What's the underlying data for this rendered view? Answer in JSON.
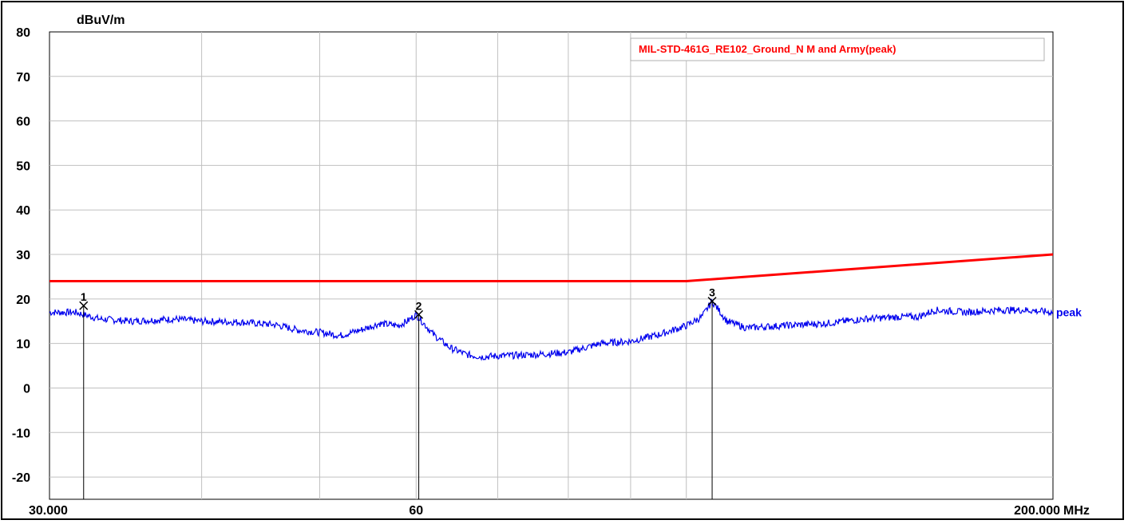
{
  "chart_data": {
    "type": "line",
    "ylabel": "dBuV/m",
    "xunit": "MHz",
    "xscale": "log",
    "xlim": [
      30,
      200
    ],
    "ylim": [
      -25,
      80
    ],
    "x_tick_labels": [
      {
        "value": 30,
        "label": "30.000"
      },
      {
        "value": 60,
        "label": "60"
      },
      {
        "value": 200,
        "label": "200.000"
      }
    ],
    "x_gridlines": [
      40,
      50,
      60,
      70,
      80,
      90,
      100
    ],
    "y_ticks": [
      80,
      70,
      60,
      50,
      40,
      30,
      20,
      10,
      0,
      -10,
      -20
    ],
    "grid": true,
    "legend": {
      "position": "top-right",
      "entries": [
        "MIL-STD-461G_RE102_Ground_N M and Army(peak)"
      ]
    },
    "colors": {
      "limit": "#ff0000",
      "trace": "#0000ee",
      "grid": "#c0c0c0"
    },
    "series": [
      {
        "name": "MIL-STD-461G_RE102_Ground_N M and Army(peak)",
        "color": "#ff0000",
        "x": [
          30,
          100,
          200
        ],
        "y": [
          24,
          24,
          30
        ]
      },
      {
        "name": "peak",
        "color": "#0000ee",
        "x": [
          30,
          31.5,
          33,
          35,
          38,
          40,
          43,
          46,
          48,
          50,
          52,
          54,
          56,
          58,
          59,
          60,
          62,
          64,
          66,
          68,
          70,
          75,
          80,
          85,
          90,
          95,
          100,
          103,
          105,
          108,
          112,
          120,
          130,
          140,
          150,
          155,
          160,
          170,
          180,
          190,
          200
        ],
        "y": [
          17,
          17,
          15.5,
          15,
          15.5,
          15,
          14.8,
          14.2,
          13,
          12.5,
          11.8,
          13,
          14.5,
          14,
          15,
          16.5,
          12,
          9,
          7.5,
          7,
          7.2,
          7.5,
          8,
          10,
          10.5,
          12,
          14,
          16,
          19.5,
          15,
          13.5,
          14,
          14.5,
          15.5,
          16,
          16,
          17.5,
          17,
          17.5,
          17.5,
          17
        ]
      }
    ],
    "markers": [
      {
        "label": "1",
        "x": 32,
        "y": 18.5
      },
      {
        "label": "2",
        "x": 60.3,
        "y": 16.5
      },
      {
        "label": "3",
        "x": 105,
        "y": 19.5
      }
    ],
    "trace_label": "peak"
  }
}
